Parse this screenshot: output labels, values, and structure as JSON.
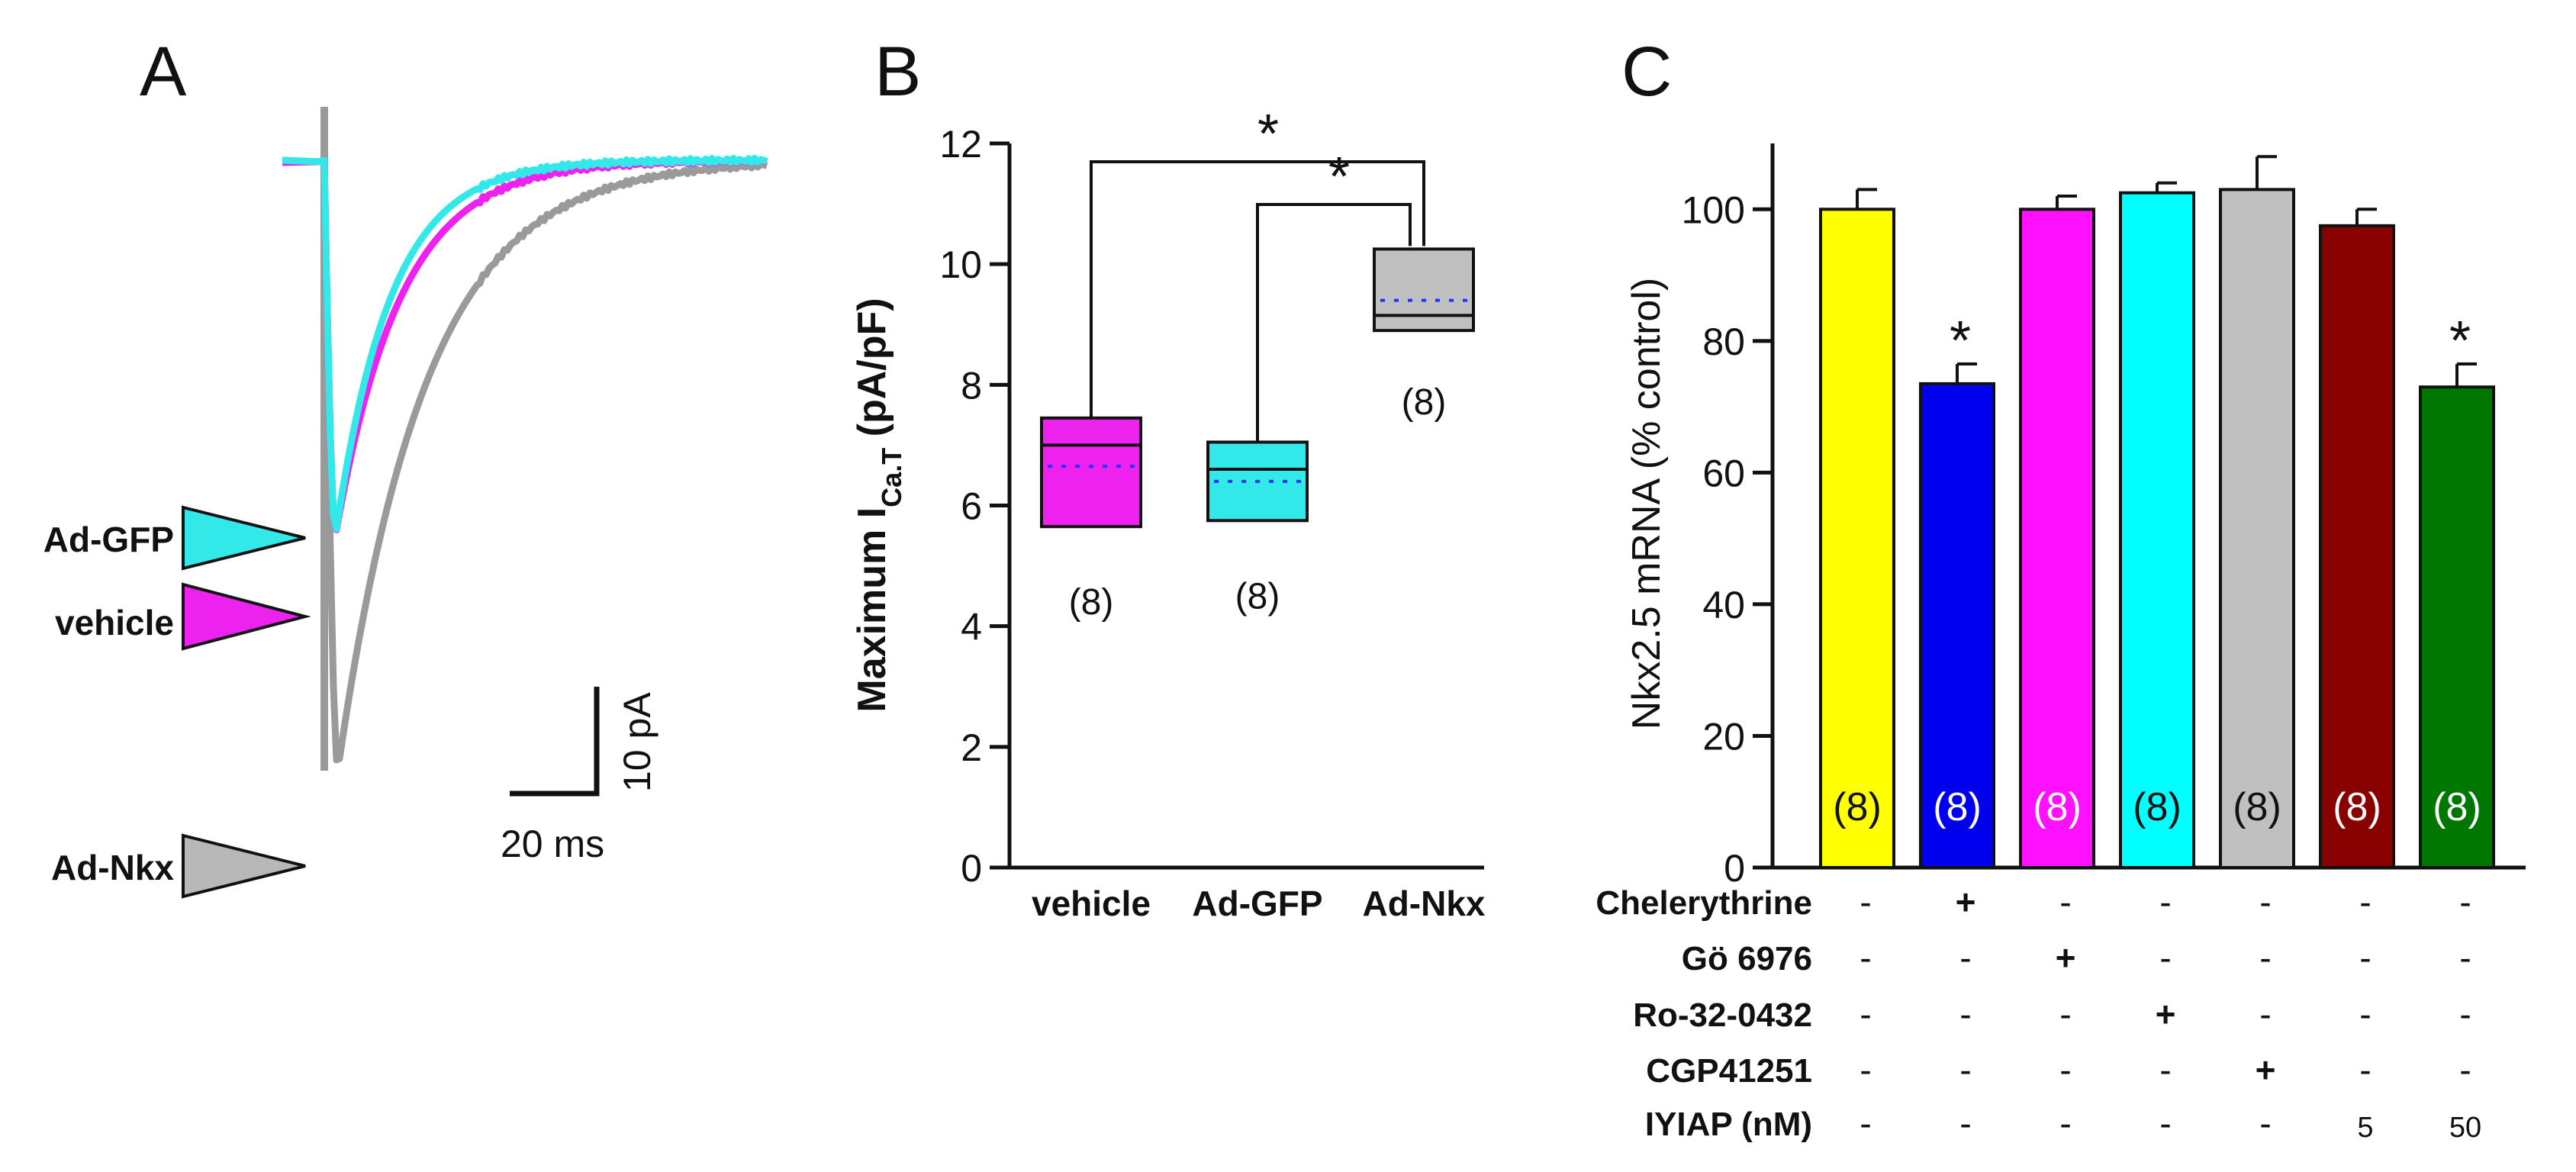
{
  "panels": {
    "A": {
      "letter": "A",
      "legend": [
        {
          "label": "Ad-GFP",
          "color": "#33e8e8"
        },
        {
          "label": "vehicle",
          "color": "#ee22ee"
        },
        {
          "label": "Ad-Nkx",
          "color": "#b8b8b8"
        }
      ],
      "scalebar": {
        "y_label": "10 pA",
        "x_label": "20 ms"
      }
    },
    "B": {
      "letter": "B"
    },
    "C": {
      "letter": "C"
    }
  },
  "chart_data": [
    {
      "type": "line",
      "panel": "A",
      "title": "",
      "xlabel": "",
      "ylabel": "",
      "series": [
        {
          "name": "Ad-GFP",
          "color": "#33e8e8",
          "peak_pA": -35,
          "baseline_pA": 0
        },
        {
          "name": "vehicle",
          "color": "#ee22ee",
          "peak_pA": -35,
          "baseline_pA": 0
        },
        {
          "name": "Ad-Nkx",
          "color": "#9a9a9a",
          "peak_pA": -57,
          "baseline_pA": 0
        }
      ]
    },
    {
      "type": "box",
      "panel": "B",
      "title": "",
      "xlabel": "",
      "ylabel": "Maximum I",
      "ylabel_sub": "Ca.T",
      "ylabel_suffix": " (pA/pF)",
      "ylim": [
        0,
        12
      ],
      "yticks": [
        "0",
        "2",
        "4",
        "6",
        "8",
        "10",
        "12"
      ],
      "categories": [
        "vehicle",
        "Ad-GFP",
        "Ad-Nkx"
      ],
      "boxes": [
        {
          "name": "vehicle",
          "q1": 5.65,
          "median": 7.0,
          "mean": 6.65,
          "q3": 7.45,
          "n": "(8)",
          "color": "#ee22ee"
        },
        {
          "name": "Ad-GFP",
          "q1": 5.75,
          "median": 6.6,
          "mean": 6.4,
          "q3": 7.05,
          "n": "(8)",
          "color": "#33e8e8"
        },
        {
          "name": "Ad-Nkx",
          "q1": 8.9,
          "median": 9.15,
          "mean": 9.4,
          "q3": 10.25,
          "n": "(8)",
          "color": "#c0c0c0"
        }
      ],
      "significance": [
        {
          "from": "vehicle",
          "to": "Ad-Nkx",
          "label": "*"
        },
        {
          "from": "Ad-GFP",
          "to": "Ad-Nkx",
          "label": "*"
        }
      ]
    },
    {
      "type": "bar",
      "panel": "C",
      "title": "",
      "xlabel": "",
      "ylabel": "Nkx2.5 mRNA (% control)",
      "ylim": [
        0,
        110
      ],
      "yticks": [
        "0",
        "20",
        "40",
        "60",
        "80",
        "100"
      ],
      "values": [
        100,
        73.5,
        100,
        102.5,
        103,
        97.5,
        73
      ],
      "errors": [
        3,
        3,
        2,
        1.5,
        5,
        2.5,
        3.5
      ],
      "n_labels": [
        "(8)",
        "(8)",
        "(8)",
        "(8)",
        "(8)",
        "(8)",
        "(8)"
      ],
      "n_label_colors": [
        "#111111",
        "#ffffff",
        "#ffffff",
        "#111111",
        "#111111",
        "#ffffff",
        "#ffffff"
      ],
      "colors": [
        "#ffff00",
        "#0000ee",
        "#ff11ff",
        "#00ffff",
        "#c0c0c0",
        "#880000",
        "#007700"
      ],
      "significance": [
        "",
        "*",
        "",
        "",
        "",
        "",
        "*"
      ],
      "conditions": [
        {
          "label": "Chelerythrine",
          "cells": [
            "-",
            "+",
            "-",
            "-",
            "-",
            "-",
            "-"
          ]
        },
        {
          "label": "Gö 6976",
          "cells": [
            "-",
            "-",
            "+",
            "-",
            "-",
            "-",
            "-"
          ]
        },
        {
          "label": "Ro-32-0432",
          "cells": [
            "-",
            "-",
            "-",
            "+",
            "-",
            "-",
            "-"
          ]
        },
        {
          "label": "CGP41251",
          "cells": [
            "-",
            "-",
            "-",
            "-",
            "+",
            "-",
            "-"
          ]
        },
        {
          "label": "IYIAP (nM)",
          "cells": [
            "-",
            "-",
            "-",
            "-",
            "-",
            "5",
            "50"
          ]
        }
      ]
    }
  ]
}
